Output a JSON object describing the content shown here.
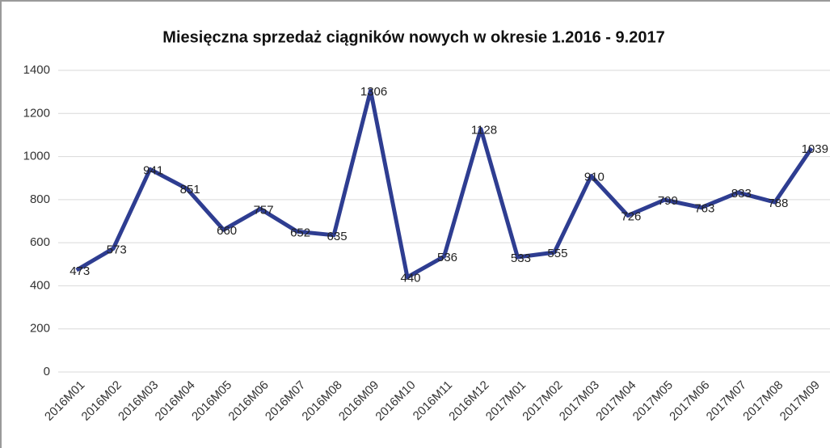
{
  "chart_data": {
    "type": "line",
    "title": "Miesięczna sprzedaż ciągników nowych w okresie 1.2016 - 9.2017",
    "categories": [
      "2016M01",
      "2016M02",
      "2016M03",
      "2016M04",
      "2016M05",
      "2016M06",
      "2016M07",
      "2016M08",
      "2016M09",
      "2016M10",
      "2016M11",
      "2016M12",
      "2017M01",
      "2017M02",
      "2017M03",
      "2017M04",
      "2017M05",
      "2017M06",
      "2017M07",
      "2017M08",
      "2017M09"
    ],
    "values": [
      473,
      573,
      941,
      851,
      660,
      757,
      652,
      635,
      1306,
      440,
      536,
      1128,
      533,
      555,
      910,
      726,
      799,
      763,
      833,
      788,
      1039
    ],
    "color": "#2e3d91",
    "ylim": [
      0,
      1400
    ],
    "yticks": [
      0,
      200,
      400,
      600,
      800,
      1000,
      1200,
      1400
    ],
    "grid": true
  }
}
